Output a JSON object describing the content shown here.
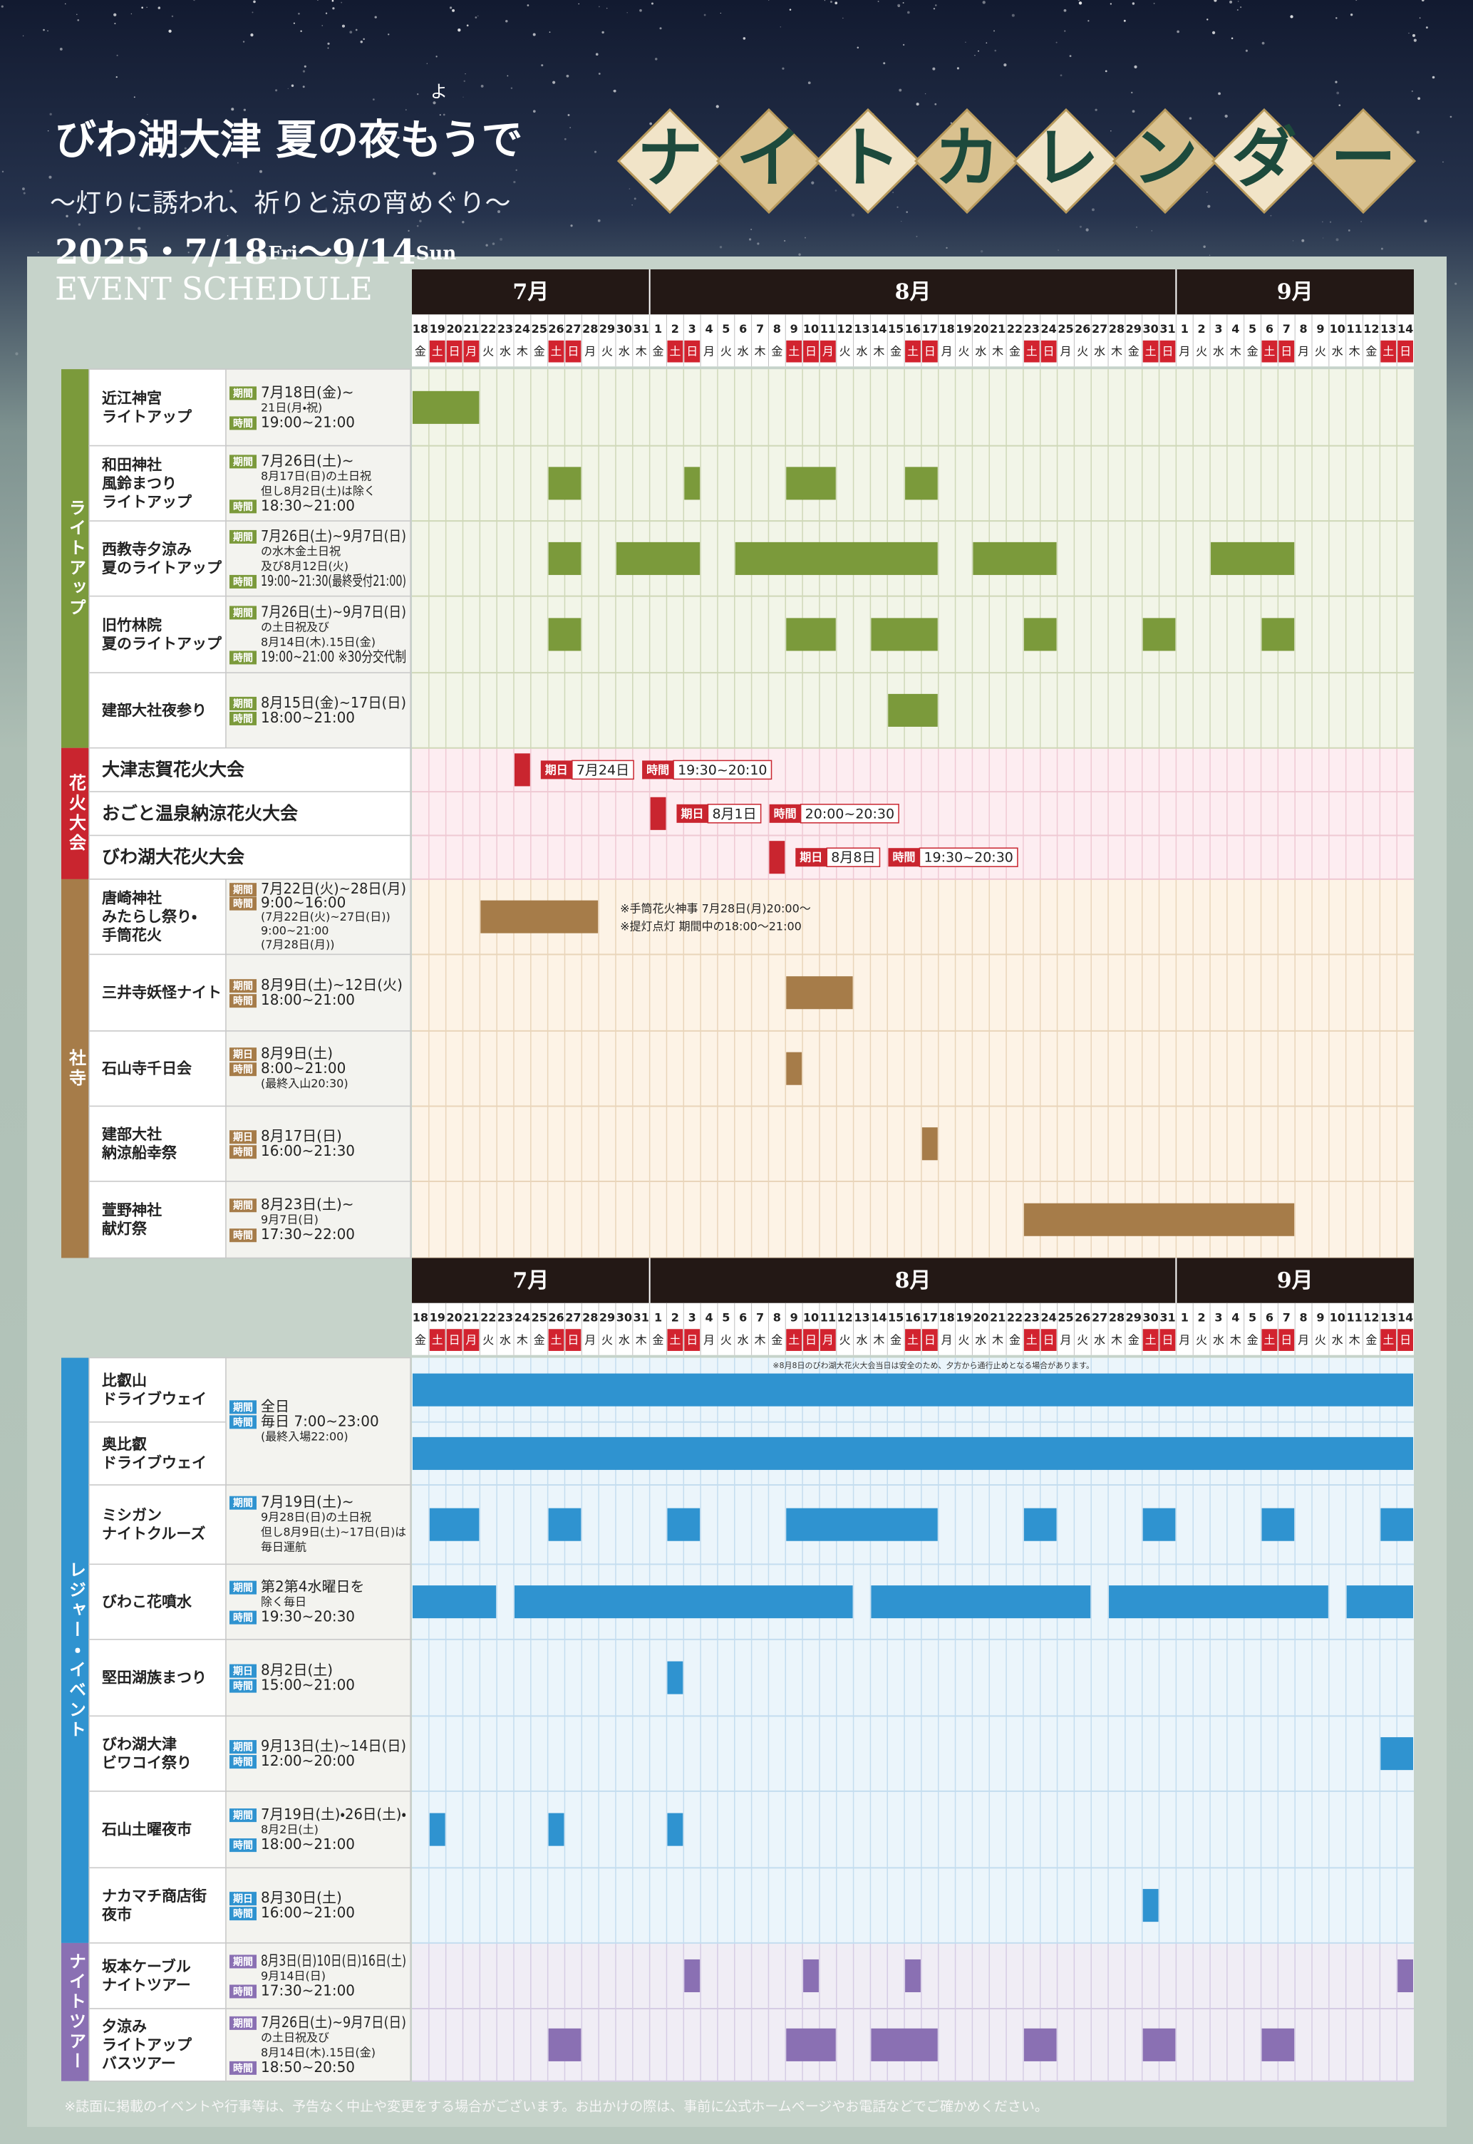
{
  "header": {
    "title": "びわ湖大津 夏の夜もうで",
    "ruby": "よ",
    "subtitle": "～灯りに誘われ、祈りと涼の宵めぐり～",
    "date_start": "2025・7/18",
    "day_start": "Fri",
    "date_end": "～9/14",
    "day_end": "Sun",
    "event_schedule": "EVENT SCHEDULE",
    "calendar_title": [
      "ナ",
      "イ",
      "ト",
      "カ",
      "レ",
      "ン",
      "ダ",
      "ー"
    ]
  },
  "months": [
    "7月",
    "8月",
    "9月"
  ],
  "days": [
    {
      "d": "18",
      "w": "金"
    },
    {
      "d": "19",
      "w": "土",
      "red": true
    },
    {
      "d": "20",
      "w": "日",
      "red": true
    },
    {
      "d": "21",
      "w": "月",
      "red": true
    },
    {
      "d": "22",
      "w": "火"
    },
    {
      "d": "23",
      "w": "水"
    },
    {
      "d": "24",
      "w": "木"
    },
    {
      "d": "25",
      "w": "金"
    },
    {
      "d": "26",
      "w": "土",
      "red": true
    },
    {
      "d": "27",
      "w": "日",
      "red": true
    },
    {
      "d": "28",
      "w": "月"
    },
    {
      "d": "29",
      "w": "火"
    },
    {
      "d": "30",
      "w": "水"
    },
    {
      "d": "31",
      "w": "木"
    },
    {
      "d": "1",
      "w": "金"
    },
    {
      "d": "2",
      "w": "土",
      "red": true
    },
    {
      "d": "3",
      "w": "日",
      "red": true
    },
    {
      "d": "4",
      "w": "月"
    },
    {
      "d": "5",
      "w": "火"
    },
    {
      "d": "6",
      "w": "水"
    },
    {
      "d": "7",
      "w": "木"
    },
    {
      "d": "8",
      "w": "金"
    },
    {
      "d": "9",
      "w": "土",
      "red": true
    },
    {
      "d": "10",
      "w": "日",
      "red": true
    },
    {
      "d": "11",
      "w": "月",
      "red": true
    },
    {
      "d": "12",
      "w": "火"
    },
    {
      "d": "13",
      "w": "水"
    },
    {
      "d": "14",
      "w": "木"
    },
    {
      "d": "15",
      "w": "金"
    },
    {
      "d": "16",
      "w": "土",
      "red": true
    },
    {
      "d": "17",
      "w": "日",
      "red": true
    },
    {
      "d": "18",
      "w": "月"
    },
    {
      "d": "19",
      "w": "火"
    },
    {
      "d": "20",
      "w": "水"
    },
    {
      "d": "21",
      "w": "木"
    },
    {
      "d": "22",
      "w": "金"
    },
    {
      "d": "23",
      "w": "土",
      "red": true
    },
    {
      "d": "24",
      "w": "日",
      "red": true
    },
    {
      "d": "25",
      "w": "月"
    },
    {
      "d": "26",
      "w": "火"
    },
    {
      "d": "27",
      "w": "水"
    },
    {
      "d": "28",
      "w": "木"
    },
    {
      "d": "29",
      "w": "金"
    },
    {
      "d": "30",
      "w": "土",
      "red": true
    },
    {
      "d": "31",
      "w": "日",
      "red": true
    },
    {
      "d": "1",
      "w": "月"
    },
    {
      "d": "2",
      "w": "火"
    },
    {
      "d": "3",
      "w": "水"
    },
    {
      "d": "4",
      "w": "木"
    },
    {
      "d": "5",
      "w": "金"
    },
    {
      "d": "6",
      "w": "土",
      "red": true
    },
    {
      "d": "7",
      "w": "日",
      "red": true
    },
    {
      "d": "8",
      "w": "月"
    },
    {
      "d": "9",
      "w": "火"
    },
    {
      "d": "10",
      "w": "水"
    },
    {
      "d": "11",
      "w": "木"
    },
    {
      "d": "12",
      "w": "金"
    },
    {
      "d": "13",
      "w": "土",
      "red": true
    },
    {
      "d": "14",
      "w": "日",
      "red": true
    }
  ],
  "tables": [
    {
      "sections": [
        {
          "label": "ライトアップ",
          "color": "#7b9a3b",
          "bg": "#f2f5e8",
          "grid": "#cfd8b8",
          "events": [
            {
              "name": [
                "近江神宮",
                "ライトアップ"
              ],
              "info": [
                {
                  "tag": "期間",
                  "text": "7月18日(金)~"
                },
                {
                  "text": "21日(月・祝)"
                },
                {
                  "tag": "時間",
                  "text": "19:00~21:00"
                }
              ]
            },
            {
              "name": [
                "和田神社",
                "風鈴まつり",
                "ライトアップ"
              ],
              "info": [
                {
                  "tag": "期間",
                  "text": "7月26日(土)~"
                },
                {
                  "text": "8月17日(日)の土日祝"
                },
                {
                  "text": "但し8月2日(土)は除く"
                },
                {
                  "tag": "時間",
                  "text": "18:30~21:00"
                }
              ]
            },
            {
              "name": [
                "西教寺夕涼み",
                "夏のライトアップ"
              ],
              "info": [
                {
                  "tag": "期間",
                  "text": "7月26日(土)~9月7日(日)"
                },
                {
                  "text": "の水木金土日祝"
                },
                {
                  "text": "及び8月12日(火)"
                },
                {
                  "tag": "時間",
                  "text": "19:00~21:30(最終受付21:00)"
                }
              ]
            },
            {
              "name": [
                "旧竹林院",
                "夏のライトアップ"
              ],
              "info": [
                {
                  "tag": "期間",
                  "text": "7月26日(土)~9月7日(日)"
                },
                {
                  "text": "の土日祝及び"
                },
                {
                  "text": "8月14日(木).15日(金)"
                },
                {
                  "tag": "時間",
                  "text": "19:00~21:00 ※30分交代制"
                }
              ]
            },
            {
              "name": [
                "建部大社夜参り"
              ],
              "info": [
                {
                  "tag": "期間",
                  "text": "8月15日(金)~17日(日)"
                },
                {
                  "tag": "時間",
                  "text": "18:00~21:00"
                }
              ]
            }
          ]
        },
        {
          "label": "花火大会",
          "color": "#c9252f",
          "bg": "#fdedf1",
          "grid": "#efc9d3",
          "events": [
            {
              "name": [
                "大津志賀花火大会"
              ],
              "info": [
                {
                  "tag": "期日",
                  "text": "7月24日"
                },
                {
                  "tag": "時間",
                  "text": "19:30~20:10"
                }
              ]
            },
            {
              "name": [
                "おごと温泉納涼花火大会"
              ],
              "info": [
                {
                  "tag": "期日",
                  "text": "8月1日"
                },
                {
                  "tag": "時間",
                  "text": "20:00~20:30"
                }
              ]
            },
            {
              "name": [
                "びわ湖大花火大会"
              ],
              "info": [
                {
                  "tag": "期日",
                  "text": "8月8日"
                },
                {
                  "tag": "時間",
                  "text": "19:30~20:30"
                }
              ]
            }
          ]
        },
        {
          "label": "社寺",
          "color": "#a67c49",
          "bg": "#fdf3e6",
          "grid": "#e9d5ba",
          "events": [
            {
              "name": [
                "唐崎神社",
                "みたらし祭り・",
                "手筒花火"
              ],
              "info": [
                {
                  "tag": "期間",
                  "text": "7月22日(火)~28日(月)"
                },
                {
                  "tag": "時間",
                  "text": "9:00~16:00"
                },
                {
                  "text": "(7月22日(火)~27日(日))"
                },
                {
                  "text": "9:00~21:00"
                },
                {
                  "text": "(7月28日(月))"
                }
              ],
              "notes": [
                "※手筒花火神事 7月28日(月)20:00～",
                "※提灯点灯 期間中の18:00～21:00"
              ]
            },
            {
              "name": [
                "三井寺妖怪ナイト"
              ],
              "info": [
                {
                  "tag": "期間",
                  "text": "8月9日(土)~12日(火)"
                },
                {
                  "tag": "時間",
                  "text": "18:00~21:00"
                }
              ]
            },
            {
              "name": [
                "石山寺千日会"
              ],
              "info": [
                {
                  "tag": "期日",
                  "text": "8月9日(土)"
                },
                {
                  "tag": "時間",
                  "text": "8:00~21:00"
                },
                {
                  "text": "(最終入山20:30)"
                }
              ]
            },
            {
              "name": [
                "建部大社",
                "納涼船幸祭"
              ],
              "info": [
                {
                  "tag": "期日",
                  "text": "8月17日(日)"
                },
                {
                  "tag": "時間",
                  "text": "16:00~21:30"
                }
              ]
            },
            {
              "name": [
                "萱野神社",
                "献灯祭"
              ],
              "info": [
                {
                  "tag": "期間",
                  "text": "8月23日(土)~"
                },
                {
                  "text": "9月7日(日)"
                },
                {
                  "tag": "時間",
                  "text": "17:30~22:00"
                }
              ]
            }
          ]
        }
      ]
    },
    {
      "note": "※8月8日のびわ湖大花火大会当日は安全のため、夕方から通行止めとなる場合があります。",
      "sections": [
        {
          "label": "レジャー・イベント",
          "color": "#2f93d0",
          "bg": "#ebf5fb",
          "grid": "#c4ddef",
          "events": [
            {
              "name": [
                "比叡山",
                "ドライブウェイ"
              ],
              "info": [
                {
                  "tag": "期間",
                  "text": "全日"
                },
                {
                  "tag": "時間",
                  "text": "毎日 7:00~23:00"
                },
                {
                  "text": "(最終入場22:00)"
                }
              ]
            },
            {
              "name": [
                "奥比叡",
                "ドライブウェイ"
              ]
            },
            {
              "name": [
                "ミシガン",
                "ナイトクルーズ"
              ],
              "info": [
                {
                  "tag": "期間",
                  "text": "7月19日(土)~"
                },
                {
                  "text": "9月28日(日)の土日祝"
                },
                {
                  "text": "但し8月9日(土)~17日(日)は"
                },
                {
                  "text": "毎日運航"
                }
              ]
            },
            {
              "name": [
                "びわこ花噴水"
              ],
              "info": [
                {
                  "tag": "期間",
                  "text": "第2第4水曜日を"
                },
                {
                  "text": "除く毎日"
                },
                {
                  "tag": "時間",
                  "text": "19:30~20:30"
                }
              ]
            },
            {
              "name": [
                "堅田湖族まつり"
              ],
              "info": [
                {
                  "tag": "期日",
                  "text": "8月2日(土)"
                },
                {
                  "tag": "時間",
                  "text": "15:00~21:00"
                }
              ]
            },
            {
              "name": [
                "びわ湖大津",
                "ビワコイ祭り"
              ],
              "info": [
                {
                  "tag": "期間",
                  "text": "9月13日(土)~14日(日)"
                },
                {
                  "tag": "時間",
                  "text": "12:00~20:00"
                }
              ]
            },
            {
              "name": [
                "石山土曜夜市"
              ],
              "info": [
                {
                  "tag": "期間",
                  "text": "7月19日(土)・26日(土)・"
                },
                {
                  "text": "8月2日(土)"
                },
                {
                  "tag": "時間",
                  "text": "18:00~21:00"
                }
              ]
            },
            {
              "name": [
                "ナカマチ商店街",
                "夜市"
              ],
              "info": [
                {
                  "tag": "期日",
                  "text": "8月30日(土)"
                },
                {
                  "tag": "時間",
                  "text": "16:00~21:00"
                }
              ]
            }
          ]
        },
        {
          "label": "ナイトツアー",
          "color": "#8a70b3",
          "bg": "#f0edf5",
          "grid": "#d5cce4",
          "events": [
            {
              "name": [
                "坂本ケーブル",
                "ナイトツアー"
              ],
              "info": [
                {
                  "tag": "期間",
                  "text": "8月3日(日)10日(日)16日(土)"
                },
                {
                  "text": "9月14日(日)"
                },
                {
                  "tag": "時間",
                  "text": "17:30~21:00"
                }
              ]
            },
            {
              "name": [
                "夕涼み",
                "ライトアップ",
                "バスツアー"
              ],
              "info": [
                {
                  "tag": "期間",
                  "text": "7月26日(土)~9月7日(日)"
                },
                {
                  "text": "の土日祝及び"
                },
                {
                  "text": "8月14日(木).15日(金)"
                },
                {
                  "tag": "時間",
                  "text": "18:50~20:50"
                }
              ]
            }
          ]
        }
      ]
    }
  ],
  "footer": "※誌面に掲載のイベントや行事等は、予告なく中止や変更をする場合がございます。お出かけの際は、事前に公式ホームページやお電話などでご確かめください。"
}
